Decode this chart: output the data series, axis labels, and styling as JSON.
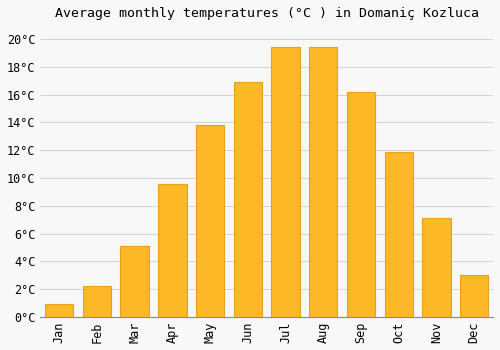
{
  "title": "Average monthly temperatures (°C ) in Domaniç Kozluca",
  "months": [
    "Jan",
    "Feb",
    "Mar",
    "Apr",
    "May",
    "Jun",
    "Jul",
    "Aug",
    "Sep",
    "Oct",
    "Nov",
    "Dec"
  ],
  "values": [
    0.9,
    2.2,
    5.1,
    9.6,
    13.8,
    16.9,
    19.4,
    19.4,
    16.2,
    11.9,
    7.1,
    3.0
  ],
  "bar_color": "#FDB827",
  "bar_edge_color": "#E8A020",
  "background_color": "#F8F8F8",
  "grid_color": "#CCCCCC",
  "ylim": [
    0,
    21
  ],
  "ytick_step": 2,
  "title_fontsize": 9.5,
  "tick_fontsize": 8.5,
  "font_family": "monospace"
}
